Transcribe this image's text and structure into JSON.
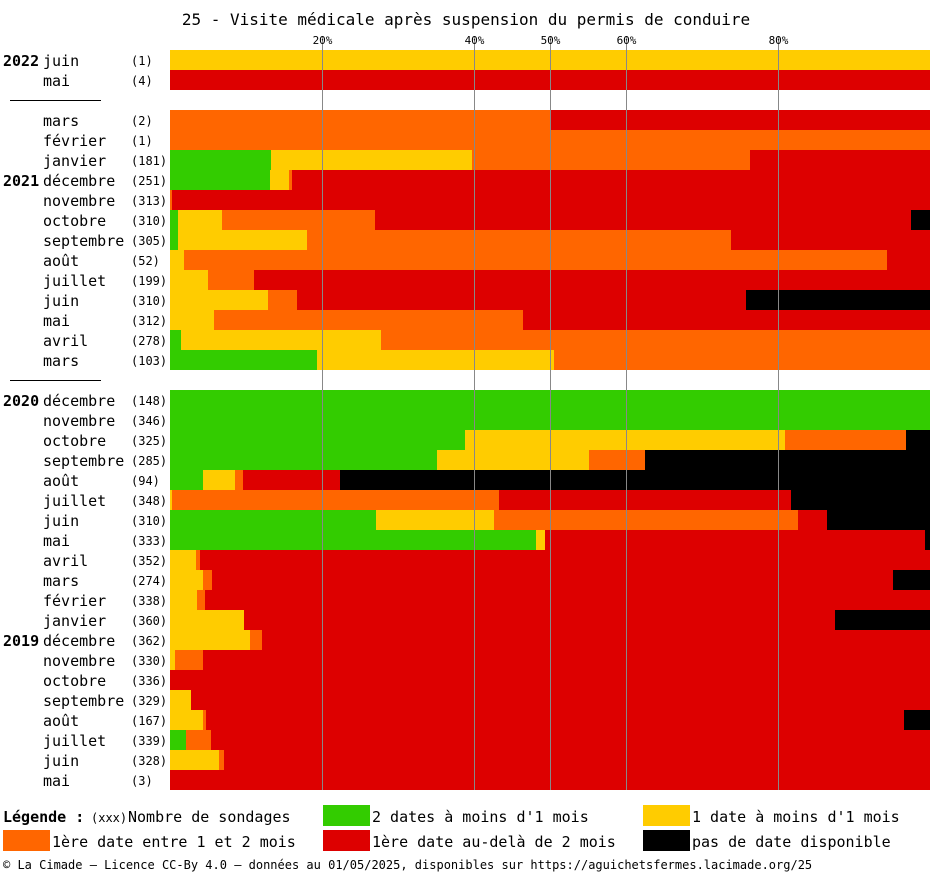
{
  "chart_data": {
    "type": "bar",
    "orientation": "horizontal",
    "stacked": true,
    "percent_scale": [
      0,
      100
    ],
    "title": "25 - Visite médicale après suspension du permis de conduire",
    "x_ticks": [
      {
        "value": 20,
        "label": "20%"
      },
      {
        "value": 40,
        "label": "40%"
      },
      {
        "value": 50,
        "label": "50%"
      },
      {
        "value": 60,
        "label": "60%"
      },
      {
        "value": 80,
        "label": "80%"
      }
    ],
    "series": [
      {
        "key": "deux_dates",
        "name": "2 dates à moins d'1 mois",
        "color": "#33cc00"
      },
      {
        "key": "une_date",
        "name": "1 date à moins d'1 mois",
        "color": "#ffcc00"
      },
      {
        "key": "entre_1_2",
        "name": "1ère date entre 1 et 2 mois",
        "color": "#ff6600"
      },
      {
        "key": "au_dela_2",
        "name": "1ère date au-delà de 2 mois",
        "color": "#dd0000"
      },
      {
        "key": "aucune",
        "name": "pas de date disponible",
        "color": "#000000"
      }
    ],
    "rows": [
      {
        "year": "2022",
        "month": "juin",
        "count": "(1)",
        "values": [
          0,
          100,
          0,
          0,
          0
        ]
      },
      {
        "year": "",
        "month": "mai",
        "count": "(4)",
        "values": [
          0,
          0,
          0,
          100,
          0
        ]
      },
      {
        "separator": true
      },
      {
        "year": "",
        "month": "mars",
        "count": "(2)",
        "values": [
          0,
          0,
          50,
          50,
          0
        ]
      },
      {
        "year": "",
        "month": "février",
        "count": "(1)",
        "values": [
          0,
          0,
          100,
          0,
          0
        ]
      },
      {
        "year": "",
        "month": "janvier",
        "count": "(181)",
        "values": [
          13.3,
          26.5,
          36.5,
          23.7,
          0
        ]
      },
      {
        "year": "2021",
        "month": "décembre",
        "count": "(251)",
        "values": [
          13.2,
          2.4,
          0.4,
          84,
          0
        ]
      },
      {
        "year": "",
        "month": "novembre",
        "count": "(313)",
        "values": [
          0,
          0,
          0.3,
          99.7,
          0
        ]
      },
      {
        "year": "",
        "month": "octobre",
        "count": "(310)",
        "values": [
          1,
          5.8,
          20.2,
          70.5,
          2.5
        ]
      },
      {
        "year": "",
        "month": "septembre",
        "count": "(305)",
        "values": [
          1,
          17,
          55.8,
          26.2,
          0
        ]
      },
      {
        "year": "",
        "month": "août",
        "count": "(52)",
        "values": [
          0,
          1.9,
          92.4,
          5.7,
          0
        ]
      },
      {
        "year": "",
        "month": "juillet",
        "count": "(199)",
        "values": [
          0,
          5,
          6.1,
          88.9,
          0
        ]
      },
      {
        "year": "",
        "month": "juin",
        "count": "(310)",
        "values": [
          0,
          12.9,
          3.8,
          59.1,
          24.2
        ]
      },
      {
        "year": "",
        "month": "mai",
        "count": "(312)",
        "values": [
          0,
          5.8,
          40.6,
          53.6,
          0
        ]
      },
      {
        "year": "",
        "month": "avril",
        "count": "(278)",
        "values": [
          1.4,
          26.3,
          72.3,
          0,
          0
        ]
      },
      {
        "year": "",
        "month": "mars",
        "count": "(103)",
        "values": [
          19.4,
          31.1,
          49.5,
          0,
          0
        ]
      },
      {
        "separator": true
      },
      {
        "year": "2020",
        "month": "décembre",
        "count": "(148)",
        "values": [
          100,
          0,
          0,
          0,
          0
        ]
      },
      {
        "year": "",
        "month": "novembre",
        "count": "(346)",
        "values": [
          100,
          0,
          0,
          0,
          0
        ]
      },
      {
        "year": "",
        "month": "octobre",
        "count": "(325)",
        "values": [
          38.8,
          42.1,
          16,
          0,
          3.1
        ]
      },
      {
        "year": "",
        "month": "septembre",
        "count": "(285)",
        "values": [
          35.1,
          20,
          7.4,
          0,
          37.5
        ]
      },
      {
        "year": "",
        "month": "août",
        "count": "(94)",
        "values": [
          4.3,
          4.3,
          1,
          12.8,
          77.6
        ]
      },
      {
        "year": "",
        "month": "juillet",
        "count": "(348)",
        "values": [
          0,
          0.3,
          43,
          38.4,
          18.3
        ]
      },
      {
        "year": "",
        "month": "juin",
        "count": "(310)",
        "values": [
          27.1,
          15.5,
          40,
          3.9,
          13.5
        ]
      },
      {
        "year": "",
        "month": "mai",
        "count": "(333)",
        "values": [
          48.1,
          1.2,
          0,
          50.1,
          0.6
        ]
      },
      {
        "year": "",
        "month": "avril",
        "count": "(352)",
        "values": [
          0,
          3.4,
          0.6,
          96,
          0
        ]
      },
      {
        "year": "",
        "month": "mars",
        "count": "(274)",
        "values": [
          0,
          4.4,
          1.1,
          89.6,
          4.9
        ]
      },
      {
        "year": "",
        "month": "février",
        "count": "(338)",
        "values": [
          0,
          3.6,
          1,
          95.4,
          0
        ]
      },
      {
        "year": "",
        "month": "janvier",
        "count": "(360)",
        "values": [
          0,
          9.7,
          0,
          77.8,
          12.5
        ]
      },
      {
        "year": "2019",
        "month": "décembre",
        "count": "(362)",
        "values": [
          0,
          10.5,
          1.6,
          87.9,
          0
        ]
      },
      {
        "year": "",
        "month": "novembre",
        "count": "(330)",
        "values": [
          0,
          0.6,
          3.7,
          95.7,
          0
        ]
      },
      {
        "year": "",
        "month": "octobre",
        "count": "(336)",
        "values": [
          0,
          0,
          0,
          100,
          0
        ]
      },
      {
        "year": "",
        "month": "septembre",
        "count": "(329)",
        "values": [
          0,
          2.8,
          0,
          97.2,
          0
        ]
      },
      {
        "year": "",
        "month": "août",
        "count": "(167)",
        "values": [
          0,
          4.3,
          0.5,
          91.8,
          3.4
        ]
      },
      {
        "year": "",
        "month": "juillet",
        "count": "(339)",
        "values": [
          2.1,
          0,
          3.3,
          94.6,
          0
        ]
      },
      {
        "year": "",
        "month": "juin",
        "count": "(328)",
        "values": [
          0,
          6.5,
          0.6,
          92.9,
          0
        ]
      },
      {
        "year": "",
        "month": "mai",
        "count": "(3)",
        "values": [
          0,
          0,
          0,
          100,
          0
        ]
      }
    ]
  },
  "legend": {
    "title": "Légende :",
    "count_token": "(xxx)",
    "count_label": "Nombre de sondages"
  },
  "footer": "© La Cimade – Licence CC-By 4.0 – données au 01/05/2025, disponibles sur https://aguichetsfermes.lacimade.org/25"
}
